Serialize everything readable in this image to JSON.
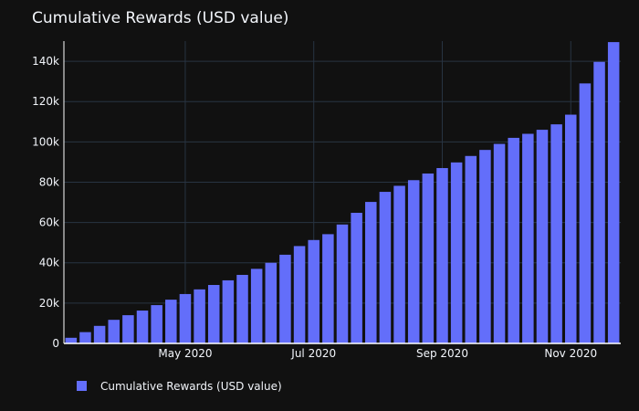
{
  "chart_data": {
    "type": "bar",
    "title": "Cumulative Rewards (USD value)",
    "xlabel": "",
    "ylabel": "",
    "series": [
      {
        "name": "Cumulative Rewards (USD value)",
        "color": "#636efa",
        "values": [
          2800,
          5600,
          8700,
          11700,
          14000,
          16300,
          19000,
          21700,
          24500,
          26800,
          29000,
          31300,
          34000,
          37000,
          40000,
          44000,
          48300,
          51300,
          54200,
          59000,
          64800,
          70200,
          75200,
          78200,
          81000,
          84300,
          87000,
          89800,
          93000,
          96000,
          99000,
          102000,
          104000,
          106000,
          108700,
          113500,
          129000,
          139700,
          149500
        ]
      }
    ],
    "ylim": [
      0,
      150000
    ],
    "yticks": [
      {
        "value": 0,
        "label": "0"
      },
      {
        "value": 20000,
        "label": "20k"
      },
      {
        "value": 40000,
        "label": "40k"
      },
      {
        "value": 60000,
        "label": "60k"
      },
      {
        "value": 80000,
        "label": "80k"
      },
      {
        "value": 100000,
        "label": "100k"
      },
      {
        "value": 120000,
        "label": "120k"
      },
      {
        "value": 140000,
        "label": "140k"
      }
    ],
    "xticks": [
      {
        "index": 8,
        "label": "May 2020"
      },
      {
        "index": 17,
        "label": "Jul 2020"
      },
      {
        "index": 26,
        "label": "Sep 2020"
      },
      {
        "index": 35,
        "label": "Nov 2020"
      }
    ],
    "legend_position": "bottom-left",
    "grid": true
  }
}
